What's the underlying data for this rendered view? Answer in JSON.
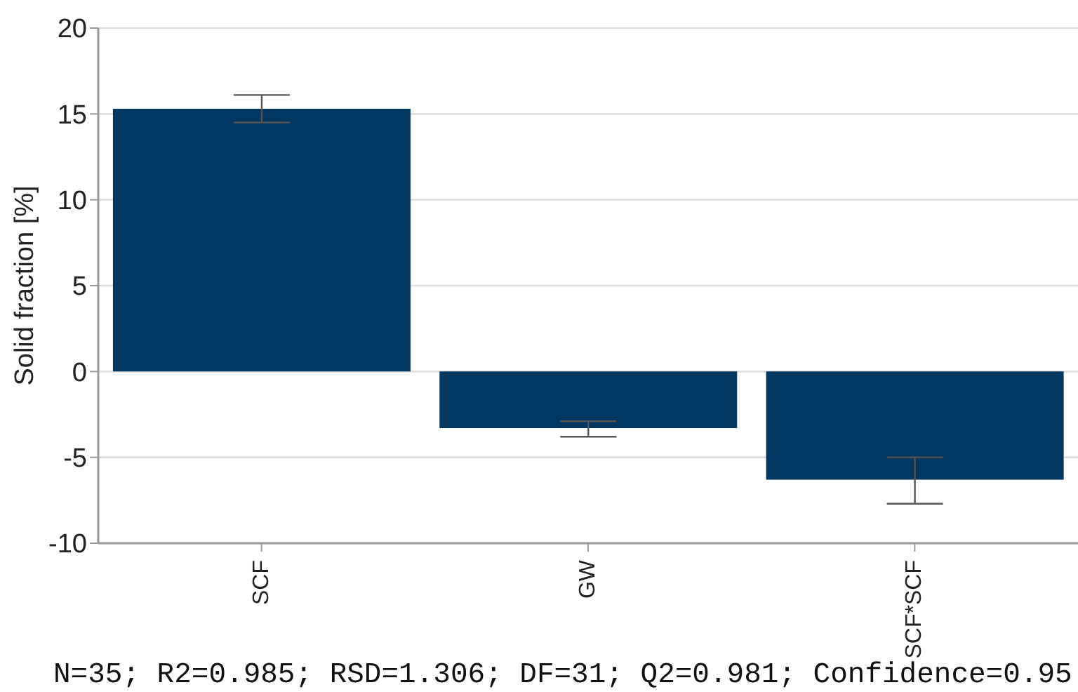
{
  "chart_data": {
    "type": "bar",
    "ylabel": "Solid fraction [%]",
    "categories": [
      "SCF",
      "GW",
      "SCF*SCF"
    ],
    "values": [
      15.3,
      -3.3,
      -6.3
    ],
    "errors": [
      [
        14.5,
        16.1
      ],
      [
        -3.8,
        -2.9
      ],
      [
        -7.7,
        -5.0
      ]
    ],
    "color": "#023761",
    "ylim": [
      -10,
      20
    ],
    "yticks": [
      -10,
      -5,
      0,
      5,
      10,
      15,
      20
    ],
    "grid": "y",
    "annotations": [
      "N=35; R2=0.985; RSD=1.306; DF=31; Q2=0.981; Confidence=0.95"
    ]
  }
}
